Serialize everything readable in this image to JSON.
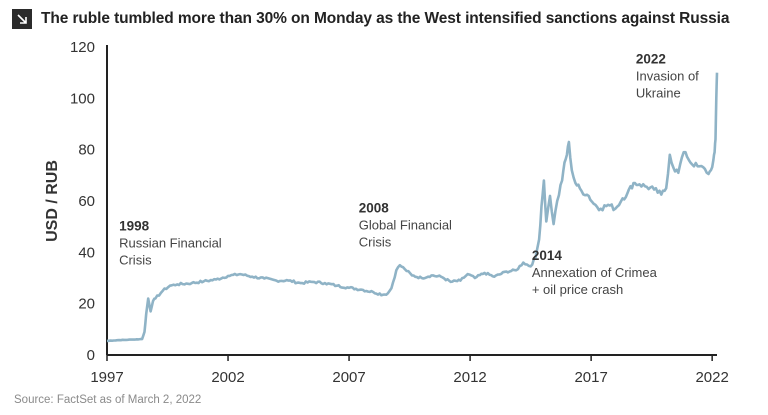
{
  "title": "The ruble tumbled more than 30% on Monday as the West intensified sanctions against Russia",
  "source": "Source: FactSet as of March 2, 2022",
  "chart_data": {
    "type": "line",
    "title": "The ruble tumbled more than 30% on Monday as the West intensified sanctions against Russia",
    "xlabel": "",
    "ylabel": "USD / RUB",
    "xlim": [
      1997,
      2022.2
    ],
    "ylim": [
      0,
      120
    ],
    "xticks": [
      "1997",
      "2002",
      "2007",
      "2012",
      "2017",
      "2022"
    ],
    "yticks": [
      "0",
      "20",
      "40",
      "60",
      "80",
      "100",
      "120"
    ],
    "line_color": "#8fb3c6",
    "series": [
      {
        "name": "USD / RUB",
        "points": [
          [
            1997.0,
            5.5
          ],
          [
            1997.5,
            5.8
          ],
          [
            1998.0,
            6.0
          ],
          [
            1998.45,
            6.2
          ],
          [
            1998.55,
            9
          ],
          [
            1998.62,
            16
          ],
          [
            1998.7,
            22
          ],
          [
            1998.8,
            17
          ],
          [
            1998.9,
            21
          ],
          [
            1999.0,
            22
          ],
          [
            1999.3,
            25
          ],
          [
            1999.6,
            27
          ],
          [
            1999.9,
            27.5
          ],
          [
            2000.5,
            28
          ],
          [
            2001.0,
            28.7
          ],
          [
            2001.5,
            29.4
          ],
          [
            2002.0,
            30.8
          ],
          [
            2002.5,
            31.5
          ],
          [
            2003.0,
            30.5
          ],
          [
            2003.5,
            29.8
          ],
          [
            2004.0,
            29
          ],
          [
            2004.5,
            29
          ],
          [
            2005.0,
            28
          ],
          [
            2005.5,
            28.5
          ],
          [
            2006.0,
            28
          ],
          [
            2006.5,
            27
          ],
          [
            2007.0,
            26.2
          ],
          [
            2007.5,
            25.5
          ],
          [
            2008.0,
            24.5
          ],
          [
            2008.4,
            23.5
          ],
          [
            2008.6,
            24
          ],
          [
            2008.75,
            26
          ],
          [
            2008.95,
            33
          ],
          [
            2009.1,
            35
          ],
          [
            2009.3,
            33.5
          ],
          [
            2009.6,
            31
          ],
          [
            2010.0,
            30
          ],
          [
            2010.4,
            31
          ],
          [
            2010.8,
            30.5
          ],
          [
            2011.2,
            28.5
          ],
          [
            2011.6,
            29
          ],
          [
            2011.9,
            31.5
          ],
          [
            2012.2,
            30
          ],
          [
            2012.6,
            32
          ],
          [
            2013.0,
            30.5
          ],
          [
            2013.5,
            32.5
          ],
          [
            2013.9,
            33
          ],
          [
            2014.2,
            36
          ],
          [
            2014.5,
            34.5
          ],
          [
            2014.7,
            38
          ],
          [
            2014.85,
            45
          ],
          [
            2014.95,
            58
          ],
          [
            2015.05,
            68
          ],
          [
            2015.15,
            52
          ],
          [
            2015.3,
            62
          ],
          [
            2015.45,
            51
          ],
          [
            2015.6,
            60
          ],
          [
            2015.8,
            68
          ],
          [
            2015.9,
            75
          ],
          [
            2016.0,
            78
          ],
          [
            2016.08,
            83
          ],
          [
            2016.2,
            72
          ],
          [
            2016.35,
            67
          ],
          [
            2016.6,
            64
          ],
          [
            2016.9,
            62
          ],
          [
            2017.1,
            59
          ],
          [
            2017.4,
            57
          ],
          [
            2017.7,
            58.5
          ],
          [
            2018.0,
            57
          ],
          [
            2018.3,
            61
          ],
          [
            2018.5,
            63
          ],
          [
            2018.75,
            67
          ],
          [
            2019.0,
            66.5
          ],
          [
            2019.3,
            65.5
          ],
          [
            2019.6,
            64.5
          ],
          [
            2019.9,
            62.5
          ],
          [
            2020.1,
            65
          ],
          [
            2020.25,
            78
          ],
          [
            2020.4,
            73
          ],
          [
            2020.6,
            71
          ],
          [
            2020.75,
            77
          ],
          [
            2020.9,
            79
          ],
          [
            2021.1,
            75
          ],
          [
            2021.4,
            73.5
          ],
          [
            2021.7,
            72.5
          ],
          [
            2021.85,
            70.5
          ],
          [
            2021.95,
            72
          ],
          [
            2022.05,
            76
          ],
          [
            2022.1,
            79
          ],
          [
            2022.14,
            84
          ],
          [
            2022.17,
            100
          ],
          [
            2022.2,
            110
          ]
        ]
      }
    ],
    "annotations": [
      {
        "year_label": "1998",
        "lines": [
          "Russian Financial",
          "Crisis"
        ],
        "x": 1997.5,
        "y": 48.5
      },
      {
        "year_label": "2008",
        "lines": [
          "Global Financial",
          "Crisis"
        ],
        "x": 2007.4,
        "y": 55.5
      },
      {
        "year_label": "2014",
        "lines": [
          "Annexation of Crimea",
          "+ oil price crash"
        ],
        "x": 2014.55,
        "y": 37
      },
      {
        "year_label": "2022",
        "lines": [
          "Invasion of",
          "Ukraine"
        ],
        "x": 2018.85,
        "y": 113.5
      }
    ]
  }
}
